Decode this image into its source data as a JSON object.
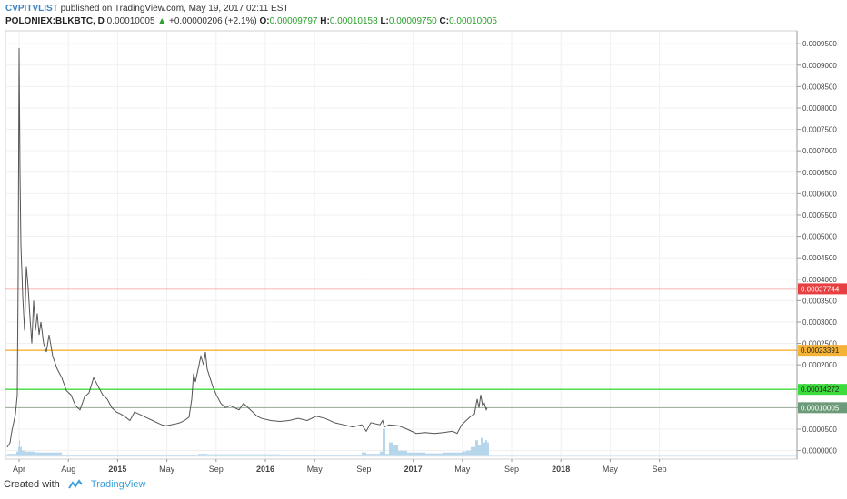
{
  "header": {
    "author": "CVPITVLIST",
    "published": "published on TradingView.com, May 19, 2017 02:11 EST",
    "symbol": "POLONIEX:BLKBTC, D",
    "last": "0.00010005",
    "change": "+0.00000206 (+2.1%)",
    "o_label": "O:",
    "o_value": "0.00009797",
    "h_label": "H:",
    "h_value": "0.00010158",
    "l_label": "L:",
    "l_value": "0.00009750",
    "c_label": "C:",
    "c_value": "0.00010005"
  },
  "footer": {
    "created_with": "Created with",
    "brand": "TradingView"
  },
  "colors": {
    "price_line": "#555555",
    "volume": "#a9cfe8",
    "red_line": "#e84040",
    "orange_line": "#f5b335",
    "green_line": "#3ddc3d",
    "current_line": "#9aaa9a",
    "current_badge": "#6d9b7a"
  },
  "chart_data": {
    "type": "line",
    "title": "",
    "xlabel": "",
    "ylabel": "",
    "y_range": [
      -2e-05,
      0.00098
    ],
    "x_ticks": [
      "Apr",
      "Aug",
      "2015",
      "May",
      "Sep",
      "2016",
      "May",
      "Sep",
      "2017",
      "May",
      "Sep",
      "2018",
      "May",
      "Sep"
    ],
    "y_ticks": [
      "0.0000000",
      "0.0000500",
      "0.0001000",
      "0.0001500",
      "0.0002000",
      "0.0002500",
      "0.0003000",
      "0.0003500",
      "0.0004000",
      "0.0004500",
      "0.0005000",
      "0.0005500",
      "0.0006000",
      "0.0006500",
      "0.0007000",
      "0.0007500",
      "0.0008000",
      "0.0008500",
      "0.0009000",
      "0.0009500"
    ],
    "horizontal_lines": [
      {
        "value": 0.00037744,
        "label": "0.00037744",
        "color": "#e84040"
      },
      {
        "value": 0.00023391,
        "label": "0.00023391",
        "color": "#f5b335"
      },
      {
        "value": 0.00014272,
        "label": "0.00014272",
        "color": "#3ddc3d"
      },
      {
        "value": 0.00010005,
        "label": "0.00010005",
        "color": "#6d9b7a"
      }
    ],
    "series": [
      {
        "values": [
          [
            0,
            8e-06
          ],
          [
            3,
            1.8e-05
          ],
          [
            5,
            4.5e-05
          ],
          [
            7,
            6.5e-05
          ],
          [
            9,
            8.5e-05
          ],
          [
            11,
            0.00013
          ],
          [
            12,
            0.00042
          ],
          [
            13,
            0.00094
          ],
          [
            14,
            0.00065
          ],
          [
            15,
            0.00048
          ],
          [
            17,
            0.00036
          ],
          [
            19,
            0.00028
          ],
          [
            21,
            0.00043
          ],
          [
            23,
            0.00038
          ],
          [
            25,
            0.00031
          ],
          [
            27,
            0.00025
          ],
          [
            29,
            0.00035
          ],
          [
            31,
            0.00028
          ],
          [
            33,
            0.00032
          ],
          [
            35,
            0.00027
          ],
          [
            37,
            0.0003
          ],
          [
            40,
            0.00025
          ],
          [
            43,
            0.00023
          ],
          [
            46,
            0.00027
          ],
          [
            50,
            0.00022
          ],
          [
            55,
            0.00019
          ],
          [
            60,
            0.00017
          ],
          [
            65,
            0.00014
          ],
          [
            70,
            0.00013
          ],
          [
            75,
            0.000105
          ],
          [
            80,
            9.5e-05
          ],
          [
            85,
            0.000125
          ],
          [
            90,
            0.000135
          ],
          [
            95,
            0.00017
          ],
          [
            100,
            0.00015
          ],
          [
            105,
            0.00013
          ],
          [
            110,
            0.00012
          ],
          [
            115,
            0.0001
          ],
          [
            120,
            9e-05
          ],
          [
            125,
            8.5e-05
          ],
          [
            130,
            7.8e-05
          ],
          [
            135,
            7e-05
          ],
          [
            140,
            9e-05
          ],
          [
            145,
            8.5e-05
          ],
          [
            150,
            8e-05
          ],
          [
            155,
            7.5e-05
          ],
          [
            160,
            7e-05
          ],
          [
            165,
            6.5e-05
          ],
          [
            170,
            6e-05
          ],
          [
            175,
            5.8e-05
          ],
          [
            180,
            6e-05
          ],
          [
            185,
            6.2e-05
          ],
          [
            190,
            6.5e-05
          ],
          [
            195,
            7e-05
          ],
          [
            200,
            7.8e-05
          ],
          [
            203,
            0.00012
          ],
          [
            205,
            0.00018
          ],
          [
            207,
            0.00016
          ],
          [
            210,
            0.00019
          ],
          [
            213,
            0.00022
          ],
          [
            216,
            0.0002
          ],
          [
            218,
            0.00023
          ],
          [
            220,
            0.00019
          ],
          [
            223,
            0.00017
          ],
          [
            226,
            0.00015
          ],
          [
            230,
            0.00013
          ],
          [
            235,
            0.00011
          ],
          [
            240,
            0.0001
          ],
          [
            245,
            0.000105
          ],
          [
            250,
            0.0001
          ],
          [
            255,
            9.5e-05
          ],
          [
            260,
            0.00011
          ],
          [
            265,
            0.0001
          ],
          [
            270,
            9e-05
          ],
          [
            275,
            8e-05
          ],
          [
            280,
            7.5e-05
          ],
          [
            290,
            7e-05
          ],
          [
            300,
            6.8e-05
          ],
          [
            310,
            7e-05
          ],
          [
            320,
            7.5e-05
          ],
          [
            330,
            7e-05
          ],
          [
            340,
            8e-05
          ],
          [
            350,
            7.5e-05
          ],
          [
            360,
            6.5e-05
          ],
          [
            370,
            6e-05
          ],
          [
            380,
            5.5e-05
          ],
          [
            390,
            6e-05
          ],
          [
            395,
            4.5e-05
          ],
          [
            400,
            6.5e-05
          ],
          [
            410,
            6e-05
          ],
          [
            413,
            7e-05
          ],
          [
            415,
            5.5e-05
          ],
          [
            420,
            6e-05
          ],
          [
            430,
            5.8e-05
          ],
          [
            440,
            5e-05
          ],
          [
            450,
            4e-05
          ],
          [
            460,
            4.2e-05
          ],
          [
            470,
            4e-05
          ],
          [
            480,
            4.2e-05
          ],
          [
            490,
            4.5e-05
          ],
          [
            495,
            4e-05
          ],
          [
            500,
            6e-05
          ],
          [
            505,
            7e-05
          ],
          [
            510,
            8e-05
          ],
          [
            514,
            8.5e-05
          ],
          [
            517,
            0.00012
          ],
          [
            519,
            0.0001
          ],
          [
            521,
            0.00013
          ],
          [
            523,
            0.000105
          ],
          [
            525,
            0.00011
          ],
          [
            527,
            9.5e-05
          ],
          [
            528,
            0.0001
          ]
        ]
      }
    ],
    "volume": [
      [
        0,
        0.05
      ],
      [
        10,
        0.1
      ],
      [
        12,
        0.2
      ],
      [
        13,
        0.35
      ],
      [
        14,
        0.2
      ],
      [
        16,
        0.12
      ],
      [
        20,
        0.1
      ],
      [
        30,
        0.08
      ],
      [
        60,
        0.03
      ],
      [
        100,
        0.03
      ],
      [
        150,
        0.02
      ],
      [
        200,
        0.03
      ],
      [
        210,
        0.05
      ],
      [
        220,
        0.04
      ],
      [
        300,
        0.02
      ],
      [
        380,
        0.02
      ],
      [
        390,
        0.08
      ],
      [
        395,
        0.05
      ],
      [
        410,
        0.1
      ],
      [
        413,
        0.6
      ],
      [
        416,
        0.05
      ],
      [
        420,
        0.3
      ],
      [
        424,
        0.25
      ],
      [
        430,
        0.12
      ],
      [
        440,
        0.08
      ],
      [
        460,
        0.06
      ],
      [
        480,
        0.08
      ],
      [
        500,
        0.1
      ],
      [
        505,
        0.12
      ],
      [
        510,
        0.2
      ],
      [
        515,
        0.35
      ],
      [
        518,
        0.25
      ],
      [
        521,
        0.4
      ],
      [
        524,
        0.3
      ],
      [
        526,
        0.35
      ],
      [
        528,
        0.3
      ]
    ]
  }
}
